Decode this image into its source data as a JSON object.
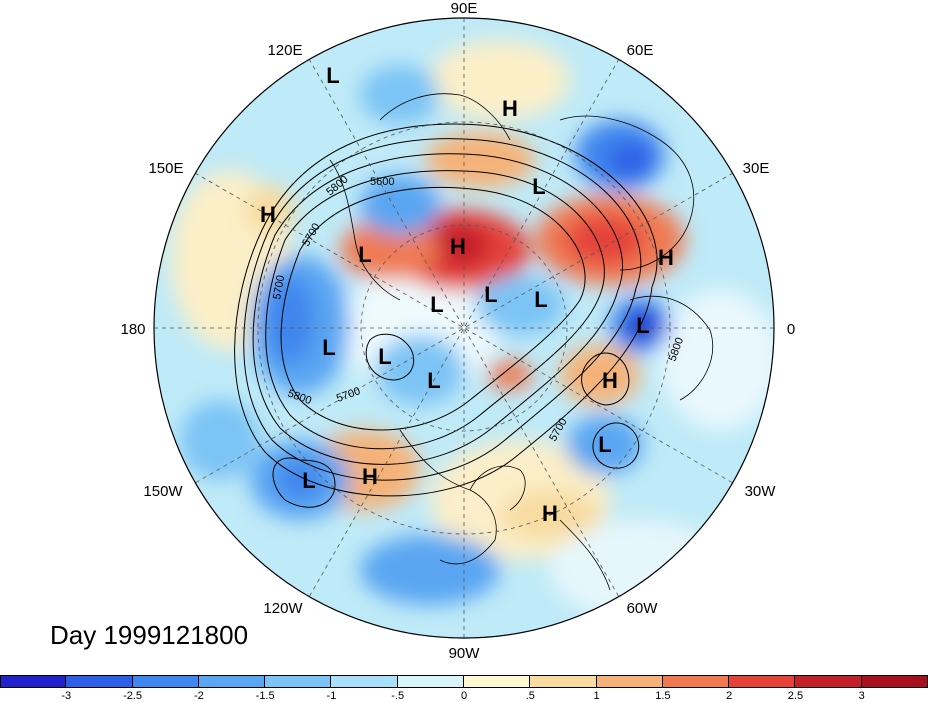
{
  "title": "Day 1999121800",
  "longitude_labels": [
    "90E",
    "60E",
    "30E",
    "0",
    "30W",
    "60W",
    "90W",
    "120W",
    "150W",
    "180",
    "150E",
    "120E"
  ],
  "contour_labels": [
    "5800",
    "5600",
    "5700",
    "5700",
    "5800",
    "5700",
    "5700",
    "5800"
  ],
  "highs": [
    "H",
    "H",
    "H",
    "H",
    "H",
    "H",
    "H"
  ],
  "lows": [
    "L",
    "L",
    "L",
    "L",
    "L",
    "L",
    "L",
    "L",
    "L",
    "L",
    "L",
    "L"
  ],
  "colorbar": {
    "ticks": [
      "-3",
      "-2.5",
      "-2",
      "-1.5",
      "-1",
      "-.5",
      "0",
      ".5",
      "1",
      "1.5",
      "2",
      "2.5",
      "3"
    ],
    "colors": [
      "#2222cc",
      "#2f5fe6",
      "#3f86ee",
      "#5aa6f2",
      "#7cc4f5",
      "#a7e0f8",
      "#d8f4fb",
      "#fdf7d2",
      "#f8dba0",
      "#f5b278",
      "#ef7a52",
      "#e5423a",
      "#c51f2a",
      "#a50f1f"
    ]
  }
}
